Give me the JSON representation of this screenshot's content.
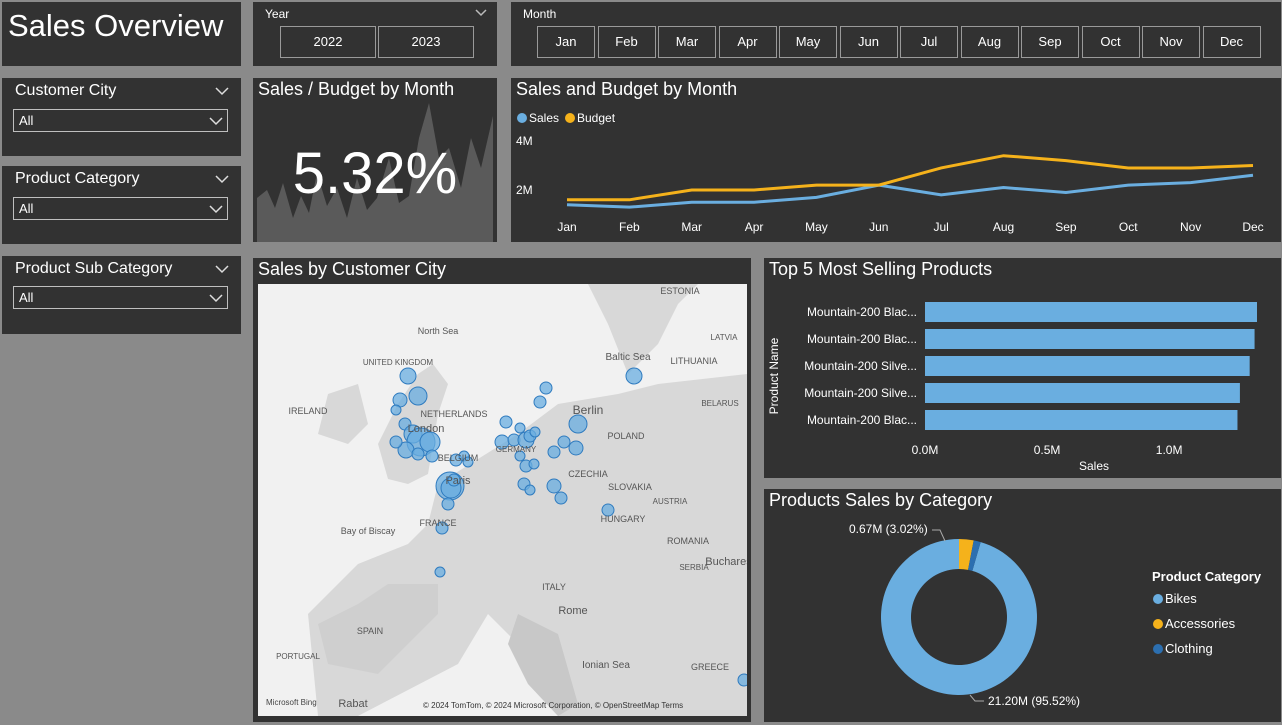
{
  "page": {
    "title": "Sales Overview"
  },
  "year_slicer": {
    "label": "Year",
    "options": [
      "2022",
      "2023"
    ]
  },
  "month_slicer": {
    "label": "Month",
    "options": [
      "Jan",
      "Feb",
      "Mar",
      "Apr",
      "May",
      "Jun",
      "Jul",
      "Aug",
      "Sep",
      "Oct",
      "Nov",
      "Dec"
    ]
  },
  "filters": {
    "customer_city": {
      "label": "Customer City",
      "value": "All"
    },
    "product_category": {
      "label": "Product Category",
      "value": "All"
    },
    "product_sub_category": {
      "label": "Product Sub Category",
      "value": "All"
    }
  },
  "kpi": {
    "title": "Sales / Budget by Month",
    "value": "5.32%"
  },
  "map": {
    "title": "Sales by Customer City",
    "labels": [
      "North Sea",
      "UNITED KINGDOM",
      "IRELAND",
      "London",
      "NETHERLANDS",
      "BELGIUM",
      "Paris",
      "FRANCE",
      "Bay of Biscay",
      "SPAIN",
      "PORTUGAL",
      "Rabat",
      "Berlin",
      "POLAND",
      "GERMANY",
      "CZECHIA",
      "SLOVAKIA",
      "HUNGARY",
      "AUSTRIA",
      "ROMANIA",
      "SERBIA",
      "ITALY",
      "Rome",
      "Baltic Sea",
      "LITHUANIA",
      "LATVIA",
      "ESTONIA",
      "BELARUS",
      "Ionian Sea",
      "GREECE",
      "Bucharest"
    ],
    "attribution": "© 2024 TomTom, © 2024 Microsoft Corporation, © OpenStreetMap  Terms",
    "logo": "Microsoft Bing"
  },
  "line_chart_titles": {
    "title": "Sales and Budget by Month"
  },
  "bar_chart_titles": {
    "title": "Top 5 Most Selling Products"
  },
  "donut_titles": {
    "title": "Products Sales by Category",
    "label_small": "0.67M (3.02%)",
    "label_big": "21.20M (95.52%)"
  },
  "colors": {
    "sales": "#6aaee0",
    "budget": "#f5b21b",
    "clothing": "#2c6fb0",
    "panel": "#323232"
  },
  "chart_data": [
    {
      "type": "line",
      "title": "Sales and Budget by Month",
      "categories": [
        "Jan",
        "Feb",
        "Mar",
        "Apr",
        "May",
        "Jun",
        "Jul",
        "Aug",
        "Sep",
        "Oct",
        "Nov",
        "Dec"
      ],
      "series": [
        {
          "name": "Sales",
          "values": [
            1.4,
            1.3,
            1.5,
            1.5,
            1.7,
            2.2,
            1.8,
            2.1,
            1.9,
            2.2,
            2.3,
            2.6
          ]
        },
        {
          "name": "Budget",
          "values": [
            1.6,
            1.6,
            2.0,
            2.0,
            2.2,
            2.2,
            2.9,
            3.4,
            3.2,
            2.9,
            2.9,
            3.0
          ]
        }
      ],
      "yticks": [
        "2M",
        "4M"
      ],
      "ylim": [
        0,
        5
      ],
      "legend": "top-left"
    },
    {
      "type": "bar",
      "orientation": "horizontal",
      "title": "Top 5 Most Selling Products",
      "categories": [
        "Mountain-200 Blac...",
        "Mountain-200 Blac...",
        "Mountain-200 Silve...",
        "Mountain-200 Silve...",
        "Mountain-200 Blac..."
      ],
      "values": [
        1.36,
        1.35,
        1.33,
        1.29,
        1.28
      ],
      "xlabel": "Sales",
      "ylabel": "Product Name",
      "xticks": [
        "0.0M",
        "0.5M",
        "1.0M"
      ],
      "xlim": [
        0,
        1.36
      ]
    },
    {
      "type": "pie",
      "title": "Products Sales by Category",
      "categories": [
        "Bikes",
        "Accessories",
        "Clothing"
      ],
      "values": [
        95.52,
        3.02,
        1.46
      ],
      "legend_title": "Product Category",
      "legend": "right"
    }
  ]
}
